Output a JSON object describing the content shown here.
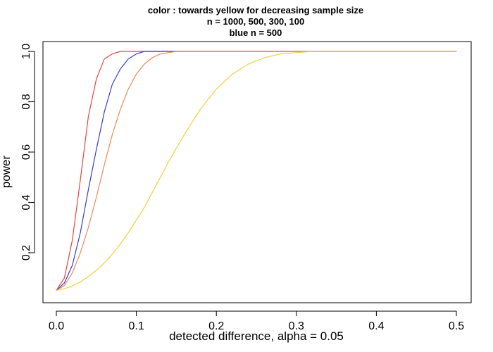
{
  "chart_data": {
    "type": "line",
    "title": "color : towards yellow for decreasing sample size",
    "subtitle_lines": [
      "n =  1000, 500, 300, 100",
      "blue n =  500"
    ],
    "xlabel": "detected difference, alpha =  0.05",
    "ylabel": "power",
    "xlim": [
      0.0,
      0.5
    ],
    "ylim": [
      0.05,
      1.0
    ],
    "x_ticks": [
      0.0,
      0.1,
      0.2,
      0.3,
      0.4,
      0.5
    ],
    "x_tick_labels": [
      "0.0",
      "0.1",
      "0.2",
      "0.3",
      "0.4",
      "0.5"
    ],
    "y_ticks": [
      0.2,
      0.4,
      0.6,
      0.8,
      1.0
    ],
    "y_tick_labels": [
      "0.2",
      "0.4",
      "0.6",
      "0.8",
      "1.0"
    ],
    "grid": false,
    "legend": "none",
    "x": [
      0.0,
      0.01,
      0.02,
      0.03,
      0.04,
      0.05,
      0.06,
      0.07,
      0.08,
      0.09,
      0.1,
      0.11,
      0.12,
      0.13,
      0.14,
      0.15,
      0.16,
      0.17,
      0.18,
      0.19,
      0.2,
      0.22,
      0.24,
      0.26,
      0.28,
      0.3,
      0.32,
      0.34,
      0.36,
      0.4,
      0.45,
      0.5
    ],
    "series": [
      {
        "color": "#e8453c",
        "values": [
          0.05,
          0.1,
          0.25,
          0.49,
          0.74,
          0.89,
          0.97,
          0.99,
          1.0,
          1.0,
          1.0,
          1.0,
          1.0,
          1.0,
          1.0,
          1.0,
          1.0,
          1.0,
          1.0,
          1.0,
          1.0,
          1.0,
          1.0,
          1.0,
          1.0,
          1.0,
          1.0,
          1.0,
          1.0,
          1.0,
          1.0,
          1.0
        ]
      },
      {
        "color": "#3b3bcf",
        "values": [
          0.05,
          0.08,
          0.15,
          0.28,
          0.45,
          0.61,
          0.76,
          0.87,
          0.93,
          0.97,
          0.99,
          1.0,
          1.0,
          1.0,
          1.0,
          1.0,
          1.0,
          1.0,
          1.0,
          1.0,
          1.0,
          1.0,
          1.0,
          1.0,
          1.0,
          1.0,
          1.0,
          1.0,
          1.0,
          1.0,
          1.0,
          1.0
        ]
      },
      {
        "color": "#ee8a50",
        "values": [
          0.05,
          0.07,
          0.12,
          0.2,
          0.3,
          0.42,
          0.55,
          0.67,
          0.77,
          0.85,
          0.91,
          0.95,
          0.975,
          0.99,
          0.995,
          1.0,
          1.0,
          1.0,
          1.0,
          1.0,
          1.0,
          1.0,
          1.0,
          1.0,
          1.0,
          1.0,
          1.0,
          1.0,
          1.0,
          1.0,
          1.0,
          1.0
        ]
      },
      {
        "color": "#f2cf3a",
        "values": [
          0.05,
          0.057,
          0.068,
          0.084,
          0.105,
          0.13,
          0.16,
          0.195,
          0.235,
          0.28,
          0.33,
          0.38,
          0.44,
          0.5,
          0.56,
          0.615,
          0.67,
          0.72,
          0.77,
          0.81,
          0.85,
          0.91,
          0.95,
          0.975,
          0.99,
          0.995,
          1.0,
          1.0,
          1.0,
          1.0,
          1.0,
          1.0
        ]
      }
    ]
  }
}
